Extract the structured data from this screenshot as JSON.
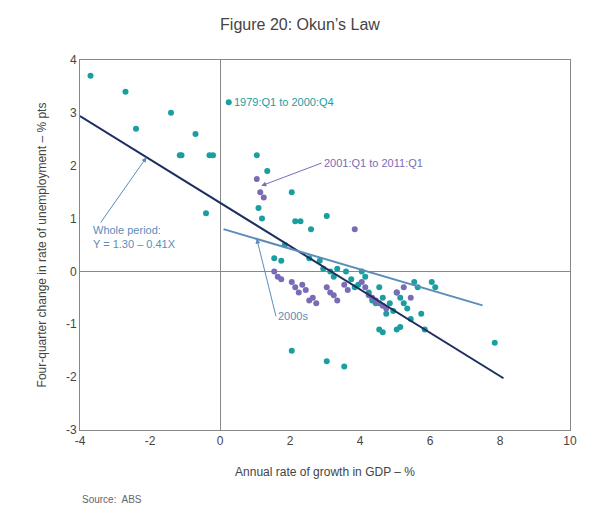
{
  "chart_data": {
    "type": "scatter",
    "title": "Figure 20: Okun’s Law",
    "xlabel": "Annual rate of growth in GDP – %",
    "ylabel": "Four-quarter change in rate of unemployment – % pts",
    "xlim": [
      -4,
      10
    ],
    "ylim": [
      -3,
      4
    ],
    "xticks": [
      -4,
      -2,
      0,
      2,
      4,
      6,
      8,
      10
    ],
    "yticks": [
      -3,
      -2,
      -1,
      0,
      1,
      2,
      3,
      4
    ],
    "grid": false,
    "series": [
      {
        "type": "scatter",
        "color": "#1A9EA0",
        "x": [
          -3.7,
          -2.7,
          -2.4,
          -1.4,
          -1.1,
          -0.7,
          -0.4,
          -0.2,
          0.25,
          1.05,
          1.2,
          1.35,
          1.55,
          1.75,
          2.05,
          2.15,
          2.3,
          2.6,
          2.85,
          2.95,
          3.05,
          3.15,
          3.25,
          3.35,
          3.6,
          3.75,
          3.85,
          3.95,
          4.05,
          4.15,
          4.25,
          4.35,
          4.45,
          4.55,
          4.65,
          4.75,
          4.85,
          4.95,
          5.05,
          5.15,
          5.25,
          5.35,
          5.45,
          5.55,
          5.65,
          5.75,
          5.85,
          6.05,
          6.15,
          7.85,
          3.05,
          3.55,
          2.05,
          4.55,
          4.65,
          5.05,
          5.15,
          2.55,
          1.85,
          -1.15,
          -0.3,
          1.1
        ],
        "values": [
          3.7,
          3.4,
          2.7,
          3.0,
          2.2,
          2.6,
          1.1,
          2.2,
          3.2,
          2.2,
          1.0,
          1.9,
          0.25,
          0.2,
          1.5,
          0.95,
          0.95,
          0.8,
          0.2,
          0.05,
          1.05,
          0.0,
          -0.1,
          0.05,
          0.0,
          -0.15,
          -0.3,
          -0.25,
          0.0,
          -0.1,
          -0.4,
          -0.55,
          -0.6,
          -0.3,
          -0.5,
          -0.8,
          -0.6,
          -0.75,
          -0.4,
          -0.5,
          -0.6,
          -0.7,
          -0.9,
          -0.2,
          -0.3,
          -0.8,
          -1.1,
          -0.2,
          -0.3,
          -1.35,
          -1.7,
          -1.8,
          -1.5,
          -1.1,
          -1.15,
          -1.1,
          -1.05,
          0.25,
          0.5,
          2.2,
          2.2,
          1.2
        ]
      },
      {
        "type": "scatter",
        "color": "#7B6BB5",
        "x": [
          1.05,
          1.15,
          1.25,
          1.55,
          1.65,
          1.75,
          2.05,
          2.15,
          2.25,
          2.35,
          2.45,
          2.55,
          2.65,
          2.75,
          3.05,
          3.15,
          3.25,
          3.35,
          3.55,
          3.65,
          4.05,
          4.15,
          4.25,
          4.35,
          4.45,
          4.55,
          4.65,
          4.75,
          5.05,
          5.25,
          5.45,
          3.85
        ],
        "values": [
          1.75,
          1.5,
          1.4,
          0.0,
          -0.1,
          -0.15,
          -0.2,
          -0.3,
          -0.4,
          -0.25,
          -0.35,
          -0.55,
          -0.5,
          -0.6,
          -0.3,
          -0.4,
          -0.45,
          -0.55,
          -0.25,
          -0.35,
          -0.2,
          -0.3,
          -0.45,
          -0.5,
          -0.55,
          -0.6,
          -0.65,
          -0.7,
          -0.4,
          -0.3,
          -0.5,
          0.8
        ]
      },
      {
        "type": "line",
        "color": "#1C2F5E",
        "x": [
          -4,
          8.1
        ],
        "values": [
          2.94,
          -2.021
        ]
      },
      {
        "type": "line",
        "color": "#5B8DB8",
        "x": [
          0.1,
          7.5
        ],
        "values": [
          0.8005,
          -0.6425
        ]
      }
    ],
    "annotations": [
      {
        "text": "1979:Q1 to 2000:Q4",
        "color": "#1A9EA0"
      },
      {
        "text": "2001:Q1 to 2011:Q1",
        "color": "#7B6BB5"
      },
      {
        "text": [
          "Whole period:",
          "Y = 1.30 – 0.41X"
        ],
        "color": "#5B8DB8"
      },
      {
        "text": "2000s",
        "color": "#5B8DB8"
      }
    ],
    "source": "Source:  ABS"
  }
}
